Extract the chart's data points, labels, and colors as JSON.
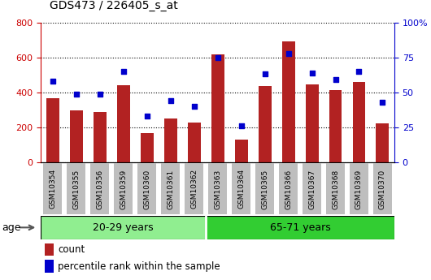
{
  "title": "GDS473 / 226405_s_at",
  "categories": [
    "GSM10354",
    "GSM10355",
    "GSM10356",
    "GSM10359",
    "GSM10360",
    "GSM10361",
    "GSM10362",
    "GSM10363",
    "GSM10364",
    "GSM10365",
    "GSM10366",
    "GSM10367",
    "GSM10368",
    "GSM10369",
    "GSM10370"
  ],
  "counts": [
    365,
    295,
    290,
    440,
    168,
    252,
    228,
    615,
    130,
    435,
    690,
    447,
    415,
    460,
    225
  ],
  "percentile_ranks": [
    58,
    49,
    49,
    65,
    33,
    44,
    40,
    75,
    26,
    63,
    78,
    64,
    59,
    65,
    43
  ],
  "group1_count": 7,
  "group2_count": 8,
  "group1_label": "20-29 years",
  "group2_label": "65-71 years",
  "group_attr": "age",
  "bar_color": "#B22222",
  "dot_color": "#0000CC",
  "ylim_left": [
    0,
    800
  ],
  "yticks_left": [
    0,
    200,
    400,
    600,
    800
  ],
  "yticks_right": [
    0,
    25,
    50,
    75,
    100
  ],
  "ytick_labels_right": [
    "0",
    "25",
    "50",
    "75",
    "100%"
  ],
  "grid_color": "black",
  "group1_bg": "#90EE90",
  "group2_bg": "#32CD32",
  "label_count": "count",
  "label_percentile": "percentile rank within the sample",
  "tick_bg": "#BEBEBE",
  "left_color": "#CC0000",
  "right_color": "#0000CC"
}
